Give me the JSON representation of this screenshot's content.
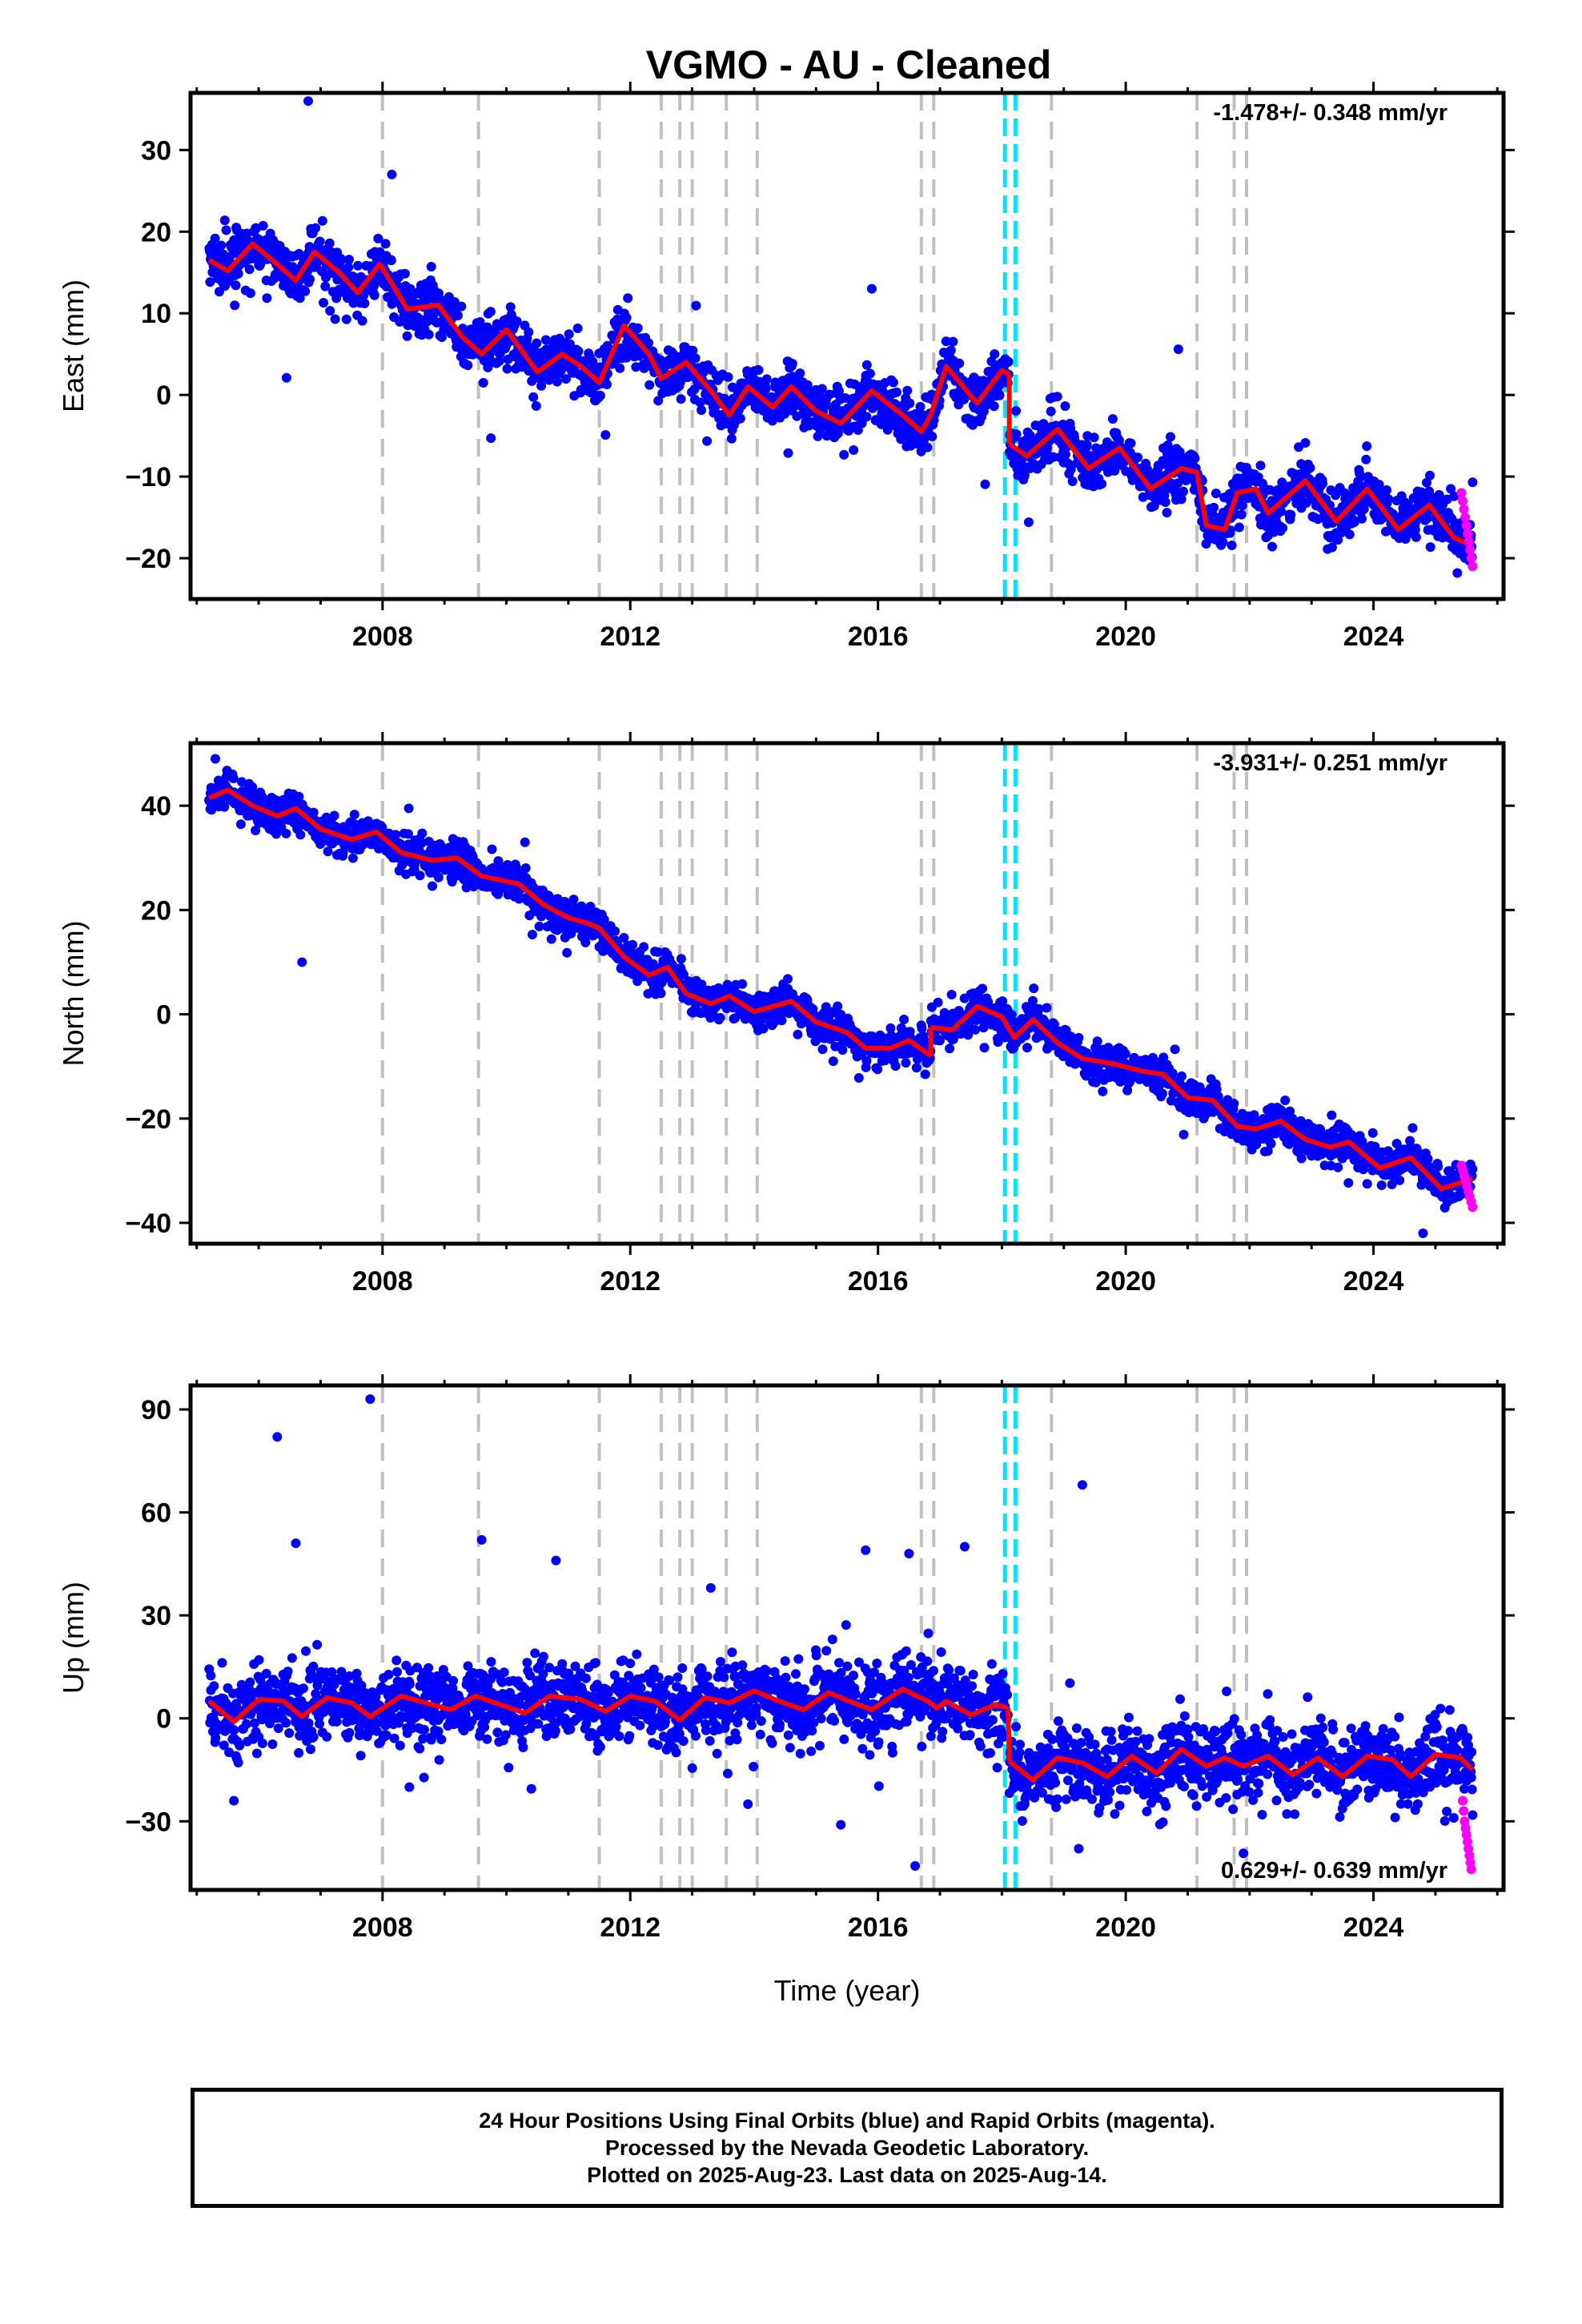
{
  "title": "VGMO  - AU - Cleaned",
  "xlabel": "Time (year)",
  "footer": {
    "line1": "24 Hour Positions Using Final Orbits (blue) and Rapid Orbits (magenta).",
    "line2": "Processed by the Nevada Geodetic Laboratory.",
    "line3": "Plotted on 2025-Aug-23. Last data on 2025-Aug-14."
  },
  "colors": {
    "final_orbits": "#0000ff",
    "rapid_orbits": "#ff00ff",
    "model": "#ff0000",
    "event_lines": "#c0c0c0",
    "equipment_lines": "#00e5ff"
  },
  "chart_data": [
    {
      "type": "scatter",
      "panel": "east",
      "ylabel": "East (mm)",
      "xlim": [
        2004.9,
        2026.1
      ],
      "ylim": [
        -25,
        37
      ],
      "xticks": [
        2008,
        2012,
        2016,
        2020,
        2024
      ],
      "yticks": [
        -20,
        -10,
        0,
        10,
        20,
        30
      ],
      "rate_label": "-1.478+/- 0.348 mm/yr",
      "trend": {
        "start": [
          2005.2,
          16.5
        ],
        "rate": -1.478,
        "seasonal_amp": 2.5
      },
      "steps": [
        [
          2018.12,
          -8.5
        ]
      ],
      "scatter_sd": 1.6,
      "outliers": [
        [
          2006.8,
          36
        ],
        [
          2008.15,
          27
        ],
        [
          2006.45,
          2.1
        ],
        [
          2009.75,
          -5.3
        ],
        [
          2011.6,
          -4.9
        ],
        [
          2015.9,
          13
        ],
        [
          2020.85,
          5.6
        ]
      ],
      "rapid_points": {
        "x_start": 2025.42,
        "x_end": 2025.6,
        "values": [
          -12,
          -13,
          -14,
          -15,
          -16,
          -17,
          -18,
          -19,
          -20,
          -21
        ]
      },
      "model_segments": [
        [
          [
            2005.2,
            16.5
          ],
          [
            2005.5,
            15.2
          ],
          [
            2005.9,
            18.5
          ],
          [
            2006.3,
            16.0
          ],
          [
            2006.6,
            14.0
          ],
          [
            2006.9,
            17.5
          ],
          [
            2007.3,
            15.0
          ],
          [
            2007.6,
            12.5
          ],
          [
            2007.95,
            16.0
          ],
          [
            2008.0,
            15.5
          ],
          [
            2008.4,
            10.5
          ],
          [
            2008.9,
            11.0
          ],
          [
            2009.3,
            7.0
          ],
          [
            2009.6,
            5.0
          ],
          [
            2010.0,
            8.0
          ],
          [
            2010.5,
            2.8
          ],
          [
            2010.9,
            5.0
          ],
          [
            2011.2,
            3.5
          ],
          [
            2011.5,
            1.5
          ],
          [
            2011.9,
            8.5
          ],
          [
            2012.3,
            5.0
          ],
          [
            2012.5,
            2.0
          ],
          [
            2012.9,
            4.0
          ],
          [
            2013.3,
            0.5
          ],
          [
            2013.6,
            -2.5
          ],
          [
            2013.9,
            1.0
          ],
          [
            2014.3,
            -1.5
          ],
          [
            2014.6,
            1.0
          ],
          [
            2015.0,
            -2.0
          ],
          [
            2015.4,
            -3.5
          ],
          [
            2015.9,
            0.5
          ],
          [
            2016.4,
            -2.5
          ],
          [
            2016.7,
            -4.5
          ],
          [
            2016.85,
            -2.5
          ],
          [
            2017.1,
            3.5
          ],
          [
            2017.6,
            -1.0
          ],
          [
            2018.0,
            3.0
          ],
          [
            2018.12,
            2.5
          ]
        ],
        [
          [
            2018.12,
            -6.0
          ],
          [
            2018.4,
            -7.5
          ],
          [
            2018.9,
            -4.2
          ],
          [
            2019.4,
            -9.0
          ],
          [
            2019.9,
            -6.5
          ],
          [
            2020.4,
            -11.5
          ],
          [
            2020.9,
            -9.0
          ],
          [
            2021.15,
            -9.5
          ],
          [
            2021.3,
            -16.0
          ],
          [
            2021.6,
            -16.5
          ],
          [
            2021.8,
            -12.0
          ],
          [
            2022.1,
            -11.5
          ],
          [
            2022.3,
            -14.5
          ],
          [
            2022.9,
            -10.5
          ],
          [
            2023.4,
            -15.5
          ],
          [
            2023.9,
            -11.5
          ],
          [
            2024.4,
            -16.5
          ],
          [
            2024.9,
            -13.5
          ],
          [
            2025.3,
            -17.5
          ],
          [
            2025.6,
            -18.5
          ]
        ]
      ]
    },
    {
      "type": "scatter",
      "panel": "north",
      "ylabel": "North (mm)",
      "xlim": [
        2004.9,
        2026.1
      ],
      "ylim": [
        -44,
        52
      ],
      "xticks": [
        2008,
        2012,
        2016,
        2020,
        2024
      ],
      "yticks": [
        -40,
        -20,
        0,
        20,
        40
      ],
      "rate_label": "-3.931+/- 0.251 mm/yr",
      "trend": {
        "start": [
          2005.2,
          42
        ],
        "rate": -3.931,
        "seasonal_amp": 1.5
      },
      "steps": [
        [
          2016.85,
          6.0
        ]
      ],
      "scatter_sd": 1.7,
      "outliers": [
        [
          2006.7,
          10
        ],
        [
          2005.3,
          49
        ],
        [
          2024.8,
          -42
        ],
        [
          2010.3,
          33
        ]
      ],
      "rapid_points": {
        "x_start": 2025.42,
        "x_end": 2025.6,
        "values": [
          -29,
          -30,
          -31,
          -32,
          -33,
          -34,
          -35,
          -36,
          -37
        ]
      },
      "model_segments": [
        [
          [
            2005.2,
            41.5
          ],
          [
            2005.5,
            43.0
          ],
          [
            2005.9,
            40.0
          ],
          [
            2006.3,
            38.0
          ],
          [
            2006.6,
            39.5
          ],
          [
            2007.0,
            35.5
          ],
          [
            2007.5,
            33.5
          ],
          [
            2007.9,
            35.0
          ],
          [
            2008.3,
            31.0
          ],
          [
            2008.8,
            29.5
          ],
          [
            2009.2,
            30.0
          ],
          [
            2009.6,
            26.5
          ],
          [
            2010.2,
            25.0
          ],
          [
            2010.6,
            21.0
          ],
          [
            2011.0,
            18.5
          ],
          [
            2011.3,
            17.5
          ],
          [
            2011.5,
            16.5
          ],
          [
            2011.9,
            11.0
          ],
          [
            2012.3,
            7.5
          ],
          [
            2012.6,
            9.0
          ],
          [
            2012.9,
            4.0
          ],
          [
            2013.3,
            2.0
          ],
          [
            2013.6,
            3.5
          ],
          [
            2014.0,
            0.5
          ],
          [
            2014.6,
            2.5
          ],
          [
            2015.0,
            -1.5
          ],
          [
            2015.5,
            -3.5
          ],
          [
            2015.8,
            -6.5
          ],
          [
            2016.2,
            -6.5
          ],
          [
            2016.5,
            -5.0
          ],
          [
            2016.85,
            -8.0
          ]
        ],
        [
          [
            2016.85,
            -2.5
          ],
          [
            2017.2,
            -3.0
          ],
          [
            2017.6,
            1.5
          ],
          [
            2018.0,
            -0.5
          ],
          [
            2018.2,
            -4.5
          ],
          [
            2018.5,
            -1.0
          ],
          [
            2018.9,
            -5.5
          ],
          [
            2019.3,
            -8.5
          ],
          [
            2019.8,
            -9.5
          ],
          [
            2020.3,
            -11.0
          ],
          [
            2020.6,
            -11.5
          ],
          [
            2021.0,
            -16.0
          ],
          [
            2021.4,
            -16.5
          ],
          [
            2021.8,
            -21.5
          ],
          [
            2022.1,
            -22.0
          ],
          [
            2022.5,
            -20.5
          ],
          [
            2022.9,
            -24.0
          ],
          [
            2023.3,
            -25.5
          ],
          [
            2023.6,
            -24.5
          ],
          [
            2024.1,
            -29.5
          ],
          [
            2024.6,
            -27.5
          ],
          [
            2025.1,
            -33.5
          ],
          [
            2025.6,
            -31.5
          ]
        ]
      ]
    },
    {
      "type": "scatter",
      "panel": "up",
      "ylabel": "Up (mm)",
      "xlim": [
        2004.9,
        2026.1
      ],
      "ylim": [
        -50,
        97
      ],
      "xticks": [
        2008,
        2012,
        2016,
        2020,
        2024
      ],
      "yticks": [
        -30,
        0,
        30,
        60,
        90
      ],
      "rate_label": "0.629+/- 0.639 mm/yr",
      "trend": {
        "start": [
          2005.2,
          3.0
        ],
        "rate": 0.629,
        "seasonal_amp": 3.5
      },
      "steps": [
        [
          2018.12,
          -19.0
        ]
      ],
      "scatter_sd": 5.5,
      "outliers": [
        [
          2007.8,
          93
        ],
        [
          2006.3,
          82
        ],
        [
          2006.6,
          51
        ],
        [
          2009.6,
          52
        ],
        [
          2019.3,
          68
        ],
        [
          2015.8,
          49
        ],
        [
          2016.5,
          48
        ],
        [
          2017.4,
          50
        ],
        [
          2015.4,
          -31
        ],
        [
          2016.6,
          -43
        ],
        [
          2005.6,
          -24
        ],
        [
          2010.8,
          46
        ],
        [
          2013.3,
          38
        ],
        [
          2013.9,
          -25
        ]
      ],
      "rapid_points": {
        "x_start": 2025.44,
        "x_end": 2025.58,
        "values": [
          -24,
          -27,
          -30,
          -32,
          -34,
          -36,
          -38,
          -40,
          -42,
          -44
        ]
      },
      "model_segments": [
        [
          [
            2005.2,
            5.0
          ],
          [
            2005.6,
            -1.0
          ],
          [
            2006.0,
            5.5
          ],
          [
            2006.4,
            5.0
          ],
          [
            2006.7,
            0.5
          ],
          [
            2007.1,
            6.0
          ],
          [
            2007.5,
            4.5
          ],
          [
            2007.8,
            0.5
          ],
          [
            2008.3,
            6.5
          ],
          [
            2008.8,
            4.0
          ],
          [
            2009.1,
            2.5
          ],
          [
            2009.5,
            6.5
          ],
          [
            2009.9,
            4.0
          ],
          [
            2010.3,
            1.5
          ],
          [
            2010.7,
            6.5
          ],
          [
            2011.2,
            5.5
          ],
          [
            2011.6,
            2.0
          ],
          [
            2012.0,
            6.5
          ],
          [
            2012.4,
            5.0
          ],
          [
            2012.8,
            -0.5
          ],
          [
            2013.2,
            6.0
          ],
          [
            2013.6,
            4.5
          ],
          [
            2014.0,
            8.0
          ],
          [
            2014.4,
            5.0
          ],
          [
            2014.8,
            2.5
          ],
          [
            2015.2,
            7.5
          ],
          [
            2015.6,
            4.5
          ],
          [
            2015.9,
            2.5
          ],
          [
            2016.4,
            8.5
          ],
          [
            2016.8,
            5.0
          ],
          [
            2016.95,
            3.0
          ],
          [
            2017.1,
            5.0
          ],
          [
            2017.5,
            1.0
          ],
          [
            2017.9,
            4.0
          ],
          [
            2018.1,
            3.0
          ]
        ],
        [
          [
            2018.12,
            -12.5
          ],
          [
            2018.5,
            -18.0
          ],
          [
            2018.9,
            -11.5
          ],
          [
            2019.3,
            -13.0
          ],
          [
            2019.7,
            -17.0
          ],
          [
            2020.1,
            -11.0
          ],
          [
            2020.5,
            -16.0
          ],
          [
            2020.9,
            -9.0
          ],
          [
            2021.3,
            -14.0
          ],
          [
            2021.6,
            -11.5
          ],
          [
            2021.9,
            -14.0
          ],
          [
            2022.3,
            -11.0
          ],
          [
            2022.7,
            -16.5
          ],
          [
            2023.1,
            -11.5
          ],
          [
            2023.5,
            -17.0
          ],
          [
            2023.9,
            -11.0
          ],
          [
            2024.3,
            -12.0
          ],
          [
            2024.6,
            -17.0
          ],
          [
            2025.0,
            -10.5
          ],
          [
            2025.4,
            -11.5
          ],
          [
            2025.6,
            -15.0
          ]
        ]
      ]
    }
  ],
  "event_lines": [
    2008.0,
    2009.55,
    2011.5,
    2012.5,
    2012.8,
    2013.0,
    2013.55,
    2014.05,
    2016.7,
    2016.9,
    2018.8,
    2021.15,
    2021.75,
    2021.95
  ],
  "equipment_lines": [
    2018.05,
    2018.22
  ]
}
